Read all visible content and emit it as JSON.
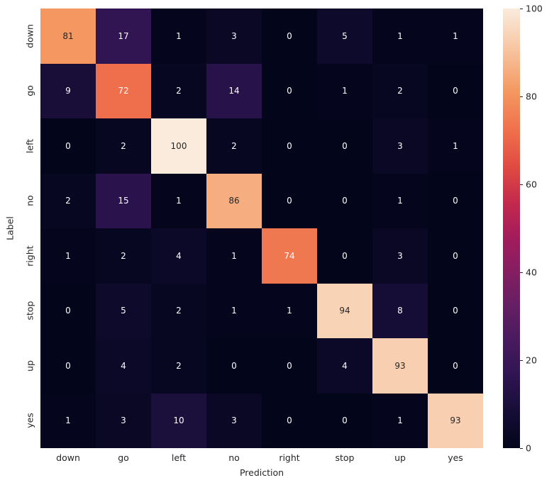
{
  "chart_data": {
    "type": "heatmap",
    "title": "",
    "xlabel": "Prediction",
    "ylabel": "Label",
    "x_categories": [
      "down",
      "go",
      "left",
      "no",
      "right",
      "stop",
      "up",
      "yes"
    ],
    "y_categories": [
      "down",
      "go",
      "left",
      "no",
      "right",
      "stop",
      "up",
      "yes"
    ],
    "matrix": [
      [
        81,
        17,
        1,
        3,
        0,
        5,
        1,
        1
      ],
      [
        9,
        72,
        2,
        14,
        0,
        1,
        2,
        0
      ],
      [
        0,
        2,
        100,
        2,
        0,
        0,
        3,
        1
      ],
      [
        2,
        15,
        1,
        86,
        0,
        0,
        1,
        0
      ],
      [
        1,
        2,
        4,
        1,
        74,
        0,
        3,
        0
      ],
      [
        0,
        5,
        2,
        1,
        1,
        94,
        8,
        0
      ],
      [
        0,
        4,
        2,
        0,
        0,
        4,
        93,
        0
      ],
      [
        1,
        3,
        10,
        3,
        0,
        0,
        1,
        93
      ]
    ],
    "vmin": 0,
    "vmax": 100,
    "grid": false,
    "legend_position": "right-colorbar",
    "colorbar_ticks": [
      0,
      20,
      40,
      60,
      80,
      100
    ],
    "colormap": {
      "name": "rocket",
      "stops": [
        [
          0.0,
          "#03051A"
        ],
        [
          0.08,
          "#150D35"
        ],
        [
          0.16,
          "#2D1450"
        ],
        [
          0.24,
          "#471A5E"
        ],
        [
          0.32,
          "#641F63"
        ],
        [
          0.4,
          "#841E61"
        ],
        [
          0.48,
          "#A31C5C"
        ],
        [
          0.56,
          "#C42A4C"
        ],
        [
          0.64,
          "#E04B41"
        ],
        [
          0.72,
          "#EF6F4C"
        ],
        [
          0.81,
          "#F49760"
        ],
        [
          0.86,
          "#F6AE80"
        ],
        [
          0.93,
          "#F8CFB0"
        ],
        [
          1.0,
          "#FAEBDD"
        ]
      ]
    },
    "annotation_text_dark": "#262626",
    "annotation_text_light": "#FFFFFF"
  }
}
